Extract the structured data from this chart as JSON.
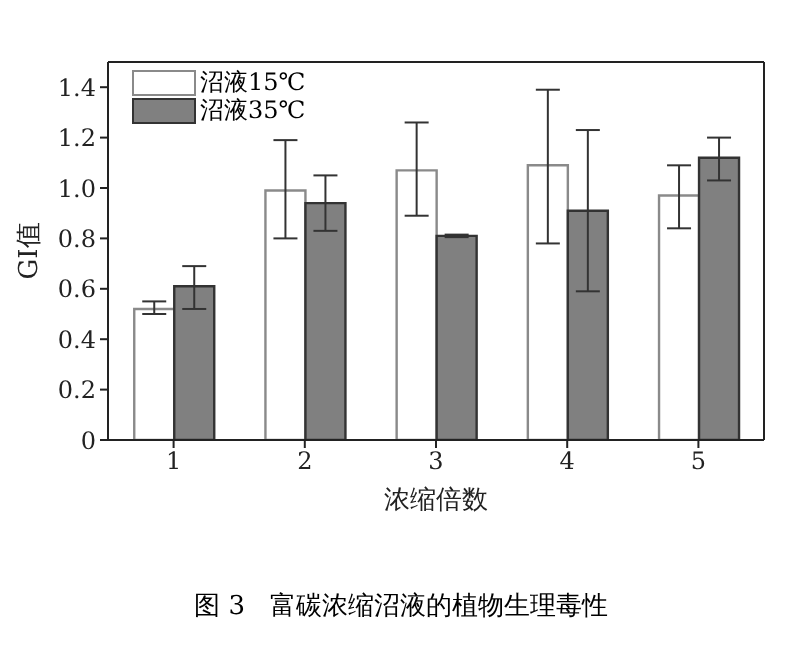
{
  "chart_data": {
    "type": "bar",
    "xlabel": "浓缩倍数",
    "ylabel": "GI值",
    "categories": [
      "1",
      "2",
      "3",
      "4",
      "5"
    ],
    "series": [
      {
        "name": "沼液15℃",
        "color": "#ffffff",
        "values": [
          0.52,
          0.99,
          1.07,
          1.09,
          0.97
        ],
        "errors": [
          [
            0.5,
            0.55
          ],
          [
            0.8,
            1.19
          ],
          [
            0.89,
            1.26
          ],
          [
            0.78,
            1.39
          ],
          [
            0.84,
            1.09
          ]
        ]
      },
      {
        "name": "沼液35℃",
        "color": "#808080",
        "values": [
          0.61,
          0.94,
          0.81,
          0.91,
          1.12
        ],
        "errors": [
          [
            0.52,
            0.69
          ],
          [
            0.83,
            1.05
          ],
          [
            0.805,
            0.815
          ],
          [
            0.59,
            1.23
          ],
          [
            1.03,
            1.2
          ]
        ]
      }
    ],
    "ylim": [
      0,
      1.5
    ],
    "yticks": [
      0,
      {
        "value": 0.2,
        "label": "0.2"
      },
      {
        "value": 0.4,
        "label": "0.4"
      },
      {
        "value": 0.6,
        "label": "0.6"
      },
      {
        "value": 0.8,
        "label": "0.8"
      },
      {
        "value": 1,
        "label": "1.0"
      },
      {
        "value": 1.2,
        "label": "1.2"
      },
      {
        "value": 1.4,
        "label": "1.4"
      }
    ],
    "grid": false,
    "legend": "top left",
    "annotations": [
      "图 3   富碳浓缩沼液的植物生理毒性"
    ]
  }
}
